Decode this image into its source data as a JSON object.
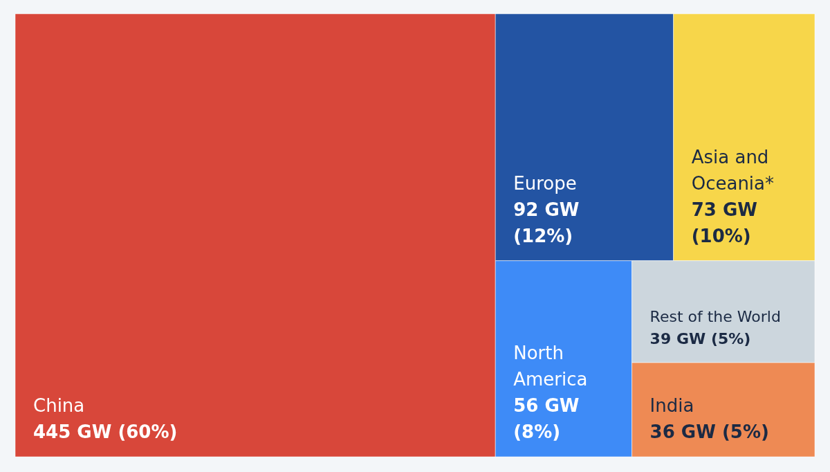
{
  "chart_data": {
    "type": "other",
    "categories": [
      "China",
      "Europe",
      "Asia and Oceania*",
      "North America",
      "Rest of the World",
      "India"
    ],
    "values": [
      445,
      92,
      73,
      56,
      39,
      36
    ],
    "colors": [
      "#d8473a",
      "#2354a3",
      "#f7d64a",
      "#3e8bf7",
      "#ccd6dd",
      "#ee8a54"
    ],
    "value_labels": [
      "445 GW (60%)",
      "92 GW (12%)",
      "73 GW (10%)",
      "56 GW (8%)",
      "39 GW (5%)",
      "36 GW (5%)"
    ]
  }
}
